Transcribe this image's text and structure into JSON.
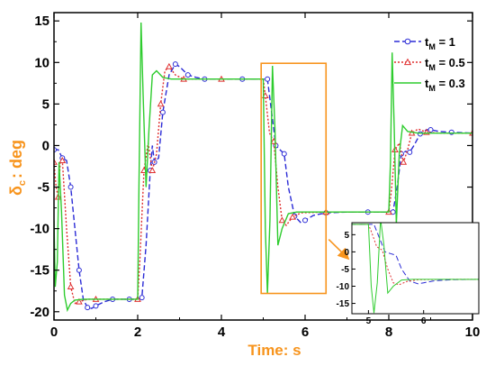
{
  "chart_data": {
    "type": "line",
    "xlabel": "Time: s",
    "ylabel": {
      "main": "δ",
      "sub": "c",
      "rest": ": deg"
    },
    "xlim": [
      0,
      10
    ],
    "ylim": [
      -21,
      16
    ],
    "xticks": [
      0,
      2,
      4,
      6,
      8,
      10
    ],
    "yticks": [
      15,
      10,
      5,
      0,
      -5,
      -10,
      -15,
      -20
    ],
    "grid": false,
    "legend_position": "top-right",
    "series": [
      {
        "name": {
          "main": "t",
          "sub": "M",
          "rest": " = 1"
        },
        "color": "#2b2bd6",
        "dash": "6,3",
        "marker": "circle",
        "points": [
          [
            0,
            -0.5
          ],
          [
            0.1,
            -0.5
          ],
          [
            0.2,
            -1.5
          ],
          [
            0.3,
            -1.8
          ],
          [
            0.4,
            -5
          ],
          [
            0.5,
            -10
          ],
          [
            0.6,
            -15
          ],
          [
            0.7,
            -18.5
          ],
          [
            0.8,
            -19.5
          ],
          [
            0.9,
            -19.6
          ],
          [
            1.0,
            -19.3
          ],
          [
            1.2,
            -18.8
          ],
          [
            1.4,
            -18.5
          ],
          [
            1.6,
            -18.5
          ],
          [
            1.8,
            -18.5
          ],
          [
            2.0,
            -18.5
          ],
          [
            2.1,
            -18.3
          ],
          [
            2.2,
            -12
          ],
          [
            2.3,
            -3
          ],
          [
            2.35,
            0
          ],
          [
            2.4,
            -2
          ],
          [
            2.5,
            -1.5
          ],
          [
            2.6,
            4
          ],
          [
            2.75,
            8.5
          ],
          [
            2.9,
            9.8
          ],
          [
            3.0,
            9.5
          ],
          [
            3.2,
            8.5
          ],
          [
            3.4,
            8.2
          ],
          [
            3.6,
            8.0
          ],
          [
            4.0,
            8.0
          ],
          [
            4.5,
            8.0
          ],
          [
            5.0,
            8.0
          ],
          [
            5.1,
            8.0
          ],
          [
            5.2,
            4
          ],
          [
            5.3,
            0
          ],
          [
            5.4,
            -0.5
          ],
          [
            5.5,
            -1
          ],
          [
            5.6,
            -5
          ],
          [
            5.75,
            -8.5
          ],
          [
            5.9,
            -9.3
          ],
          [
            6.0,
            -9.0
          ],
          [
            6.2,
            -8.4
          ],
          [
            6.5,
            -8.1
          ],
          [
            7.0,
            -8.0
          ],
          [
            7.5,
            -8.0
          ],
          [
            8.0,
            -8.0
          ],
          [
            8.1,
            -8.0
          ],
          [
            8.2,
            -5
          ],
          [
            8.3,
            -1
          ],
          [
            8.4,
            -0.7
          ],
          [
            8.5,
            -0.8
          ],
          [
            8.6,
            0
          ],
          [
            8.75,
            1.4
          ],
          [
            8.9,
            1.9
          ],
          [
            9.0,
            1.9
          ],
          [
            9.2,
            1.7
          ],
          [
            9.5,
            1.6
          ],
          [
            10,
            1.5
          ]
        ]
      },
      {
        "name": {
          "main": "t",
          "sub": "M",
          "rest": " = 0.5"
        },
        "color": "#e03030",
        "dash": "2,2",
        "marker": "triangle",
        "points": [
          [
            0,
            -2
          ],
          [
            0.05,
            -5
          ],
          [
            0.1,
            -6.2
          ],
          [
            0.15,
            -2
          ],
          [
            0.2,
            -1.8
          ],
          [
            0.3,
            -10
          ],
          [
            0.4,
            -17
          ],
          [
            0.5,
            -19
          ],
          [
            0.6,
            -18.8
          ],
          [
            0.8,
            -18.5
          ],
          [
            1.0,
            -18.5
          ],
          [
            1.5,
            -18.5
          ],
          [
            2.0,
            -18.5
          ],
          [
            2.05,
            -14
          ],
          [
            2.15,
            -3
          ],
          [
            2.25,
            0.3
          ],
          [
            2.35,
            -3
          ],
          [
            2.45,
            -1
          ],
          [
            2.55,
            5
          ],
          [
            2.65,
            9
          ],
          [
            2.75,
            9.5
          ],
          [
            2.9,
            8.5
          ],
          [
            3.1,
            8.0
          ],
          [
            3.5,
            8.0
          ],
          [
            4.0,
            8.0
          ],
          [
            5.0,
            8.0
          ],
          [
            5.05,
            6
          ],
          [
            5.15,
            1.5
          ],
          [
            5.25,
            0.5
          ],
          [
            5.35,
            -5
          ],
          [
            5.45,
            -9
          ],
          [
            5.55,
            -9.6
          ],
          [
            5.7,
            -8.6
          ],
          [
            5.9,
            -8.1
          ],
          [
            6.5,
            -8.0
          ],
          [
            7.0,
            -8.0
          ],
          [
            8.0,
            -8.0
          ],
          [
            8.05,
            -6
          ],
          [
            8.15,
            -0.5
          ],
          [
            8.25,
            0.3
          ],
          [
            8.35,
            -2
          ],
          [
            8.45,
            -0.5
          ],
          [
            8.55,
            1.5
          ],
          [
            8.7,
            2.0
          ],
          [
            8.9,
            1.6
          ],
          [
            9.2,
            1.5
          ],
          [
            10,
            1.5
          ]
        ]
      },
      {
        "name": {
          "main": "t",
          "sub": "M",
          "rest": " = 0.3"
        },
        "color": "#2ecc2e",
        "dash": "none",
        "marker": "none",
        "points": [
          [
            0,
            -9
          ],
          [
            0.03,
            -17
          ],
          [
            0.08,
            -14
          ],
          [
            0.12,
            -2
          ],
          [
            0.18,
            -8
          ],
          [
            0.25,
            -18
          ],
          [
            0.32,
            -19.8
          ],
          [
            0.4,
            -19
          ],
          [
            0.5,
            -18.6
          ],
          [
            0.7,
            -18.5
          ],
          [
            1.0,
            -18.5
          ],
          [
            1.5,
            -18.5
          ],
          [
            2.0,
            -18.5
          ],
          [
            2.03,
            -5
          ],
          [
            2.08,
            14.8
          ],
          [
            2.13,
            6
          ],
          [
            2.2,
            -5
          ],
          [
            2.27,
            2
          ],
          [
            2.35,
            8.5
          ],
          [
            2.45,
            9
          ],
          [
            2.6,
            8.2
          ],
          [
            2.8,
            8.0
          ],
          [
            3.5,
            8.0
          ],
          [
            4.0,
            8.0
          ],
          [
            5.0,
            8.0
          ],
          [
            5.05,
            -10
          ],
          [
            5.1,
            -17.8
          ],
          [
            5.16,
            -9
          ],
          [
            5.22,
            9.6
          ],
          [
            5.28,
            2
          ],
          [
            5.35,
            -12
          ],
          [
            5.45,
            -10
          ],
          [
            5.6,
            -8.2
          ],
          [
            5.8,
            -8.0
          ],
          [
            6.5,
            -8.0
          ],
          [
            7.0,
            -8.0
          ],
          [
            8.0,
            -8.0
          ],
          [
            8.04,
            -2
          ],
          [
            8.08,
            11.2
          ],
          [
            8.13,
            2
          ],
          [
            8.18,
            -9.5
          ],
          [
            8.25,
            -1
          ],
          [
            8.33,
            2.4
          ],
          [
            8.45,
            1.7
          ],
          [
            8.7,
            1.5
          ],
          [
            9.0,
            1.5
          ],
          [
            10,
            1.5
          ]
        ]
      }
    ],
    "annotations": [
      {
        "type": "rect",
        "x": [
          4.95,
          6.5
        ],
        "y": [
          -17.8,
          9.9
        ],
        "color": "#f7941d"
      }
    ],
    "inset": {
      "xlim": [
        4.7,
        7.0
      ],
      "ylim": [
        -18,
        8.5
      ],
      "xticks": [
        5,
        6
      ],
      "yticks": [
        5,
        0,
        -5,
        -10,
        -15
      ],
      "source_series": "all"
    }
  }
}
